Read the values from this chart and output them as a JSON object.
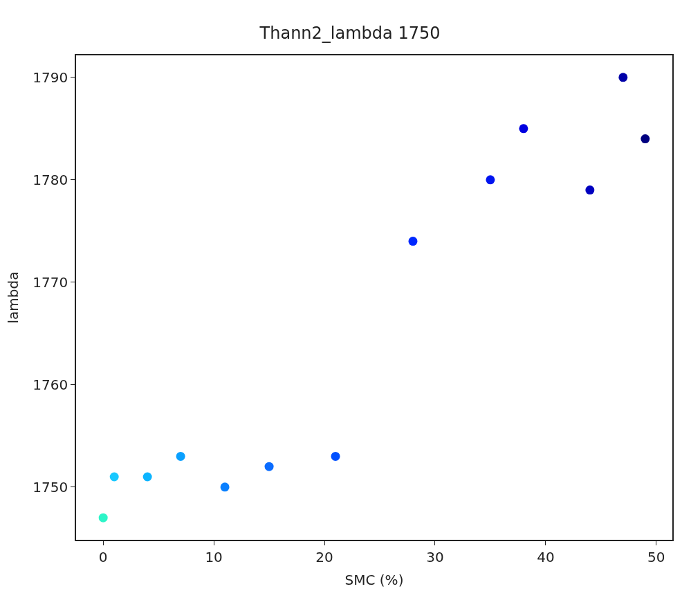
{
  "chart_data": {
    "type": "scatter",
    "title": "Thann2_lambda 1750",
    "xlabel": "SMC (%)",
    "ylabel": "lambda",
    "x": [
      0,
      1,
      4,
      7,
      11,
      15,
      21,
      28,
      35,
      38,
      44,
      47,
      49
    ],
    "values": [
      1747,
      1751,
      1751,
      1753,
      1750,
      1752,
      1753,
      1774,
      1780,
      1785,
      1779,
      1790,
      1784
    ],
    "colors": [
      "#2cf5c8",
      "#19c8ff",
      "#0cb4ff",
      "#0aa0ff",
      "#0a80ff",
      "#0a6cff",
      "#0050ff",
      "#0028ff",
      "#0014f0",
      "#0000e0",
      "#0000c0",
      "#0000a8",
      "#000080"
    ],
    "xlim": [
      -2.45,
      51.45
    ],
    "xticks": [
      0,
      10,
      20,
      30,
      40,
      50
    ],
    "ylim": [
      1744.85,
      1792.15
    ],
    "yticks": [
      1750,
      1760,
      1770,
      1780,
      1790
    ],
    "marker": "circle"
  }
}
